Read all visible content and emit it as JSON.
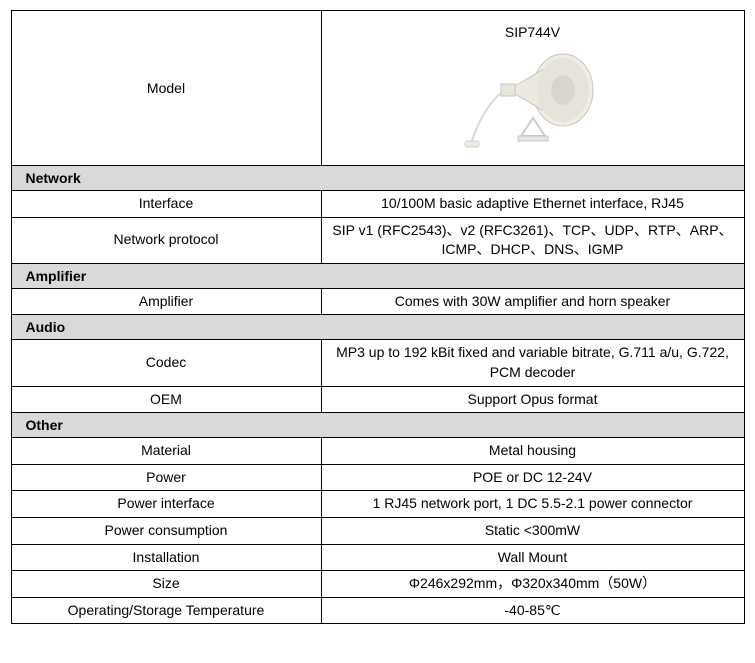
{
  "header": {
    "label": "Model",
    "product_name": "SIP744V"
  },
  "sections": [
    {
      "title": "Network",
      "rows": [
        {
          "label": "Interface",
          "value": "10/100M basic adaptive Ethernet interface, RJ45"
        },
        {
          "label": "Network protocol",
          "value": "SIP v1 (RFC2543)、v2 (RFC3261)、TCP、UDP、RTP、ARP、ICMP、DHCP、DNS、IGMP"
        }
      ]
    },
    {
      "title": "Amplifier",
      "rows": [
        {
          "label": "Amplifier",
          "value": "Comes with 30W amplifier and horn speaker"
        }
      ]
    },
    {
      "title": "Audio",
      "rows": [
        {
          "label": "Codec",
          "value": "MP3 up to 192 kBit fixed and variable bitrate, G.711 a/u, G.722, PCM decoder"
        },
        {
          "label": "OEM",
          "value": "Support Opus format"
        }
      ]
    },
    {
      "title": "Other",
      "rows": [
        {
          "label": "Material",
          "value": "Metal housing"
        },
        {
          "label": "Power",
          "value": "POE or DC 12-24V"
        },
        {
          "label": "Power interface",
          "value": "1 RJ45 network port, 1 DC 5.5-2.1 power connector"
        },
        {
          "label": "Power consumption",
          "value": "Static <300mW"
        },
        {
          "label": "Installation",
          "value": "Wall Mount"
        },
        {
          "label": "Size",
          "value": "Φ246x292mm，Φ320x340mm（50W）"
        },
        {
          "label": "Operating/Storage Temperature",
          "value": "-40-85℃"
        }
      ]
    }
  ],
  "style": {
    "section_bg": "#d9d9d9",
    "border_color": "#000000",
    "font_size": 14
  }
}
